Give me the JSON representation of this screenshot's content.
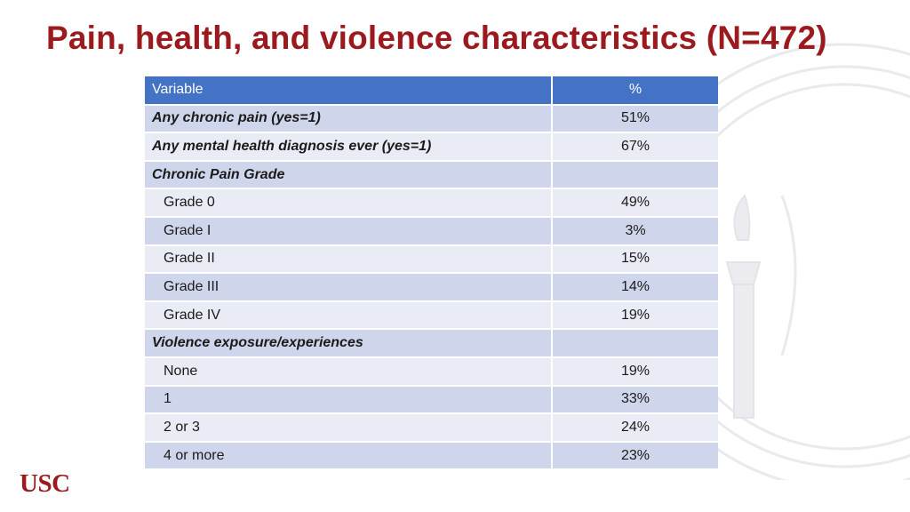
{
  "slide": {
    "title": "Pain, health, and violence characteristics (N=472)",
    "logo_text": "USC"
  },
  "colors": {
    "title": "#9a1a1e",
    "header_bg": "#4472c4",
    "row_dark": "#cfd5ea",
    "row_light": "#e9ebf5"
  },
  "table": {
    "headers": {
      "variable": "Variable",
      "percent": "%"
    },
    "rows": [
      {
        "label": "Any chronic pain (yes=1)",
        "value": "51%"
      },
      {
        "label": "Any mental health diagnosis ever (yes=1)",
        "value": "67%"
      },
      {
        "label": "Chronic Pain Grade",
        "value": ""
      },
      {
        "label": "Grade 0",
        "value": "49%"
      },
      {
        "label": "Grade I",
        "value": "3%"
      },
      {
        "label": "Grade II",
        "value": "15%"
      },
      {
        "label": "Grade III",
        "value": "14%"
      },
      {
        "label": "Grade IV",
        "value": "19%"
      },
      {
        "label": "Violence exposure/experiences",
        "value": ""
      },
      {
        "label": "None",
        "value": "19%"
      },
      {
        "label": "1",
        "value": "33%"
      },
      {
        "label": "2 or 3",
        "value": "24%"
      },
      {
        "label": "4 or more",
        "value": "23%"
      }
    ]
  }
}
